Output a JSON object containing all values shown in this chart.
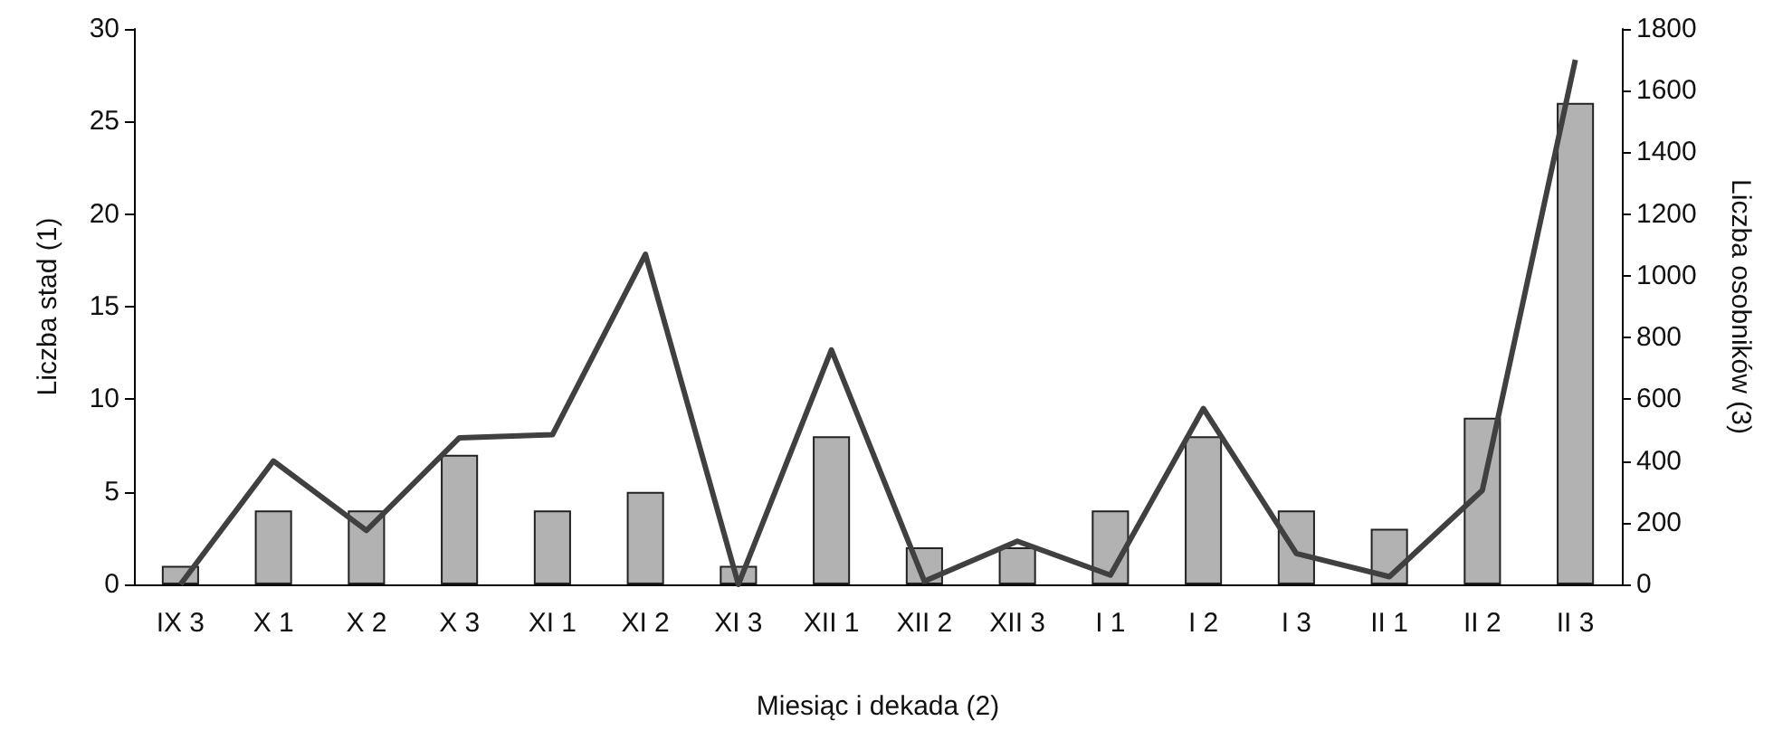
{
  "chart_data": {
    "type": "bar",
    "xlabel": "Miesiąc i dekada (2)",
    "ylabel": "Liczba stad (1)",
    "y2label": "Liczba osobników (3)",
    "categories": [
      "IX 3",
      "X 1",
      "X 2",
      "X 3",
      "XI 1",
      "XI 2",
      "XI 3",
      "XII 1",
      "XII 2",
      "XII 3",
      "I 1",
      "I 2",
      "I 3",
      "II 1",
      "II 2",
      "II 3"
    ],
    "series": [
      {
        "color": "#b2b2b2",
        "values": [
          1,
          4,
          4,
          7,
          4,
          5,
          1,
          8,
          2,
          2,
          4,
          8,
          4,
          3,
          9,
          26
        ]
      },
      {
        "type": "line",
        "axis": "y2",
        "color": "#404040",
        "values": [
          0,
          400,
          175,
          475,
          485,
          1070,
          0,
          760,
          10,
          140,
          30,
          570,
          100,
          25,
          305,
          1700
        ]
      }
    ],
    "ylim": [
      0,
      30
    ],
    "yticks": [
      0,
      5,
      10,
      15,
      20,
      25,
      30
    ],
    "y2lim": [
      0,
      1800
    ],
    "y2ticks": [
      0,
      200,
      400,
      600,
      800,
      1000,
      1200,
      1400,
      1600,
      1800
    ],
    "grid": false,
    "marker": "none",
    "line_style": "solid"
  }
}
